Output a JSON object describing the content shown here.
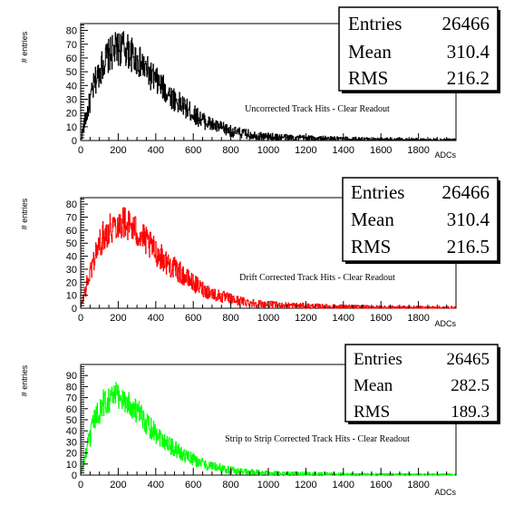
{
  "chart_data": [
    {
      "type": "histogram",
      "title": "Uncorrected Track Hits - Clear Readout",
      "xlabel": "ADCs",
      "ylabel": "# entries",
      "xlim": [
        0,
        2000
      ],
      "ylim": [
        0,
        85
      ],
      "xticks": [
        0,
        200,
        400,
        600,
        800,
        1000,
        1200,
        1400,
        1600,
        1800
      ],
      "yticks": [
        0,
        10,
        20,
        30,
        40,
        50,
        60,
        70,
        80
      ],
      "color": "#000000",
      "stats": {
        "entries_label": "Entries",
        "entries": "26466",
        "mean_label": "Mean",
        "mean": "310.4",
        "rms_label": "RMS",
        "rms": "216.2"
      },
      "bins": {
        "x": [
          25,
          75,
          125,
          175,
          225,
          275,
          325,
          375,
          425,
          475,
          525,
          575,
          625,
          675,
          725,
          775,
          825,
          875,
          925,
          975,
          1050,
          1150,
          1250,
          1350,
          1450,
          1550,
          1650,
          1750,
          1850,
          1950
        ],
        "values": [
          15,
          42,
          58,
          65,
          68,
          62,
          55,
          47,
          40,
          33,
          27,
          22,
          17,
          13,
          10,
          8,
          6,
          5,
          4,
          3,
          2.5,
          2,
          1.5,
          1.2,
          1,
          0.8,
          0.7,
          0.6,
          0.5,
          0.4
        ]
      }
    },
    {
      "type": "histogram",
      "title": "Drift Corrected Track Hits - Clear Readout",
      "xlabel": "ADCs",
      "ylabel": "# entries",
      "xlim": [
        0,
        2000
      ],
      "ylim": [
        0,
        85
      ],
      "xticks": [
        0,
        200,
        400,
        600,
        800,
        1000,
        1200,
        1400,
        1600,
        1800
      ],
      "yticks": [
        0,
        10,
        20,
        30,
        40,
        50,
        60,
        70,
        80
      ],
      "color": "#ff0000",
      "stats": {
        "entries_label": "Entries",
        "entries": "26466",
        "mean_label": "Mean",
        "mean": "310.4",
        "rms_label": "RMS",
        "rms": "216.5"
      },
      "bins": {
        "x": [
          25,
          75,
          125,
          175,
          225,
          275,
          325,
          375,
          425,
          475,
          525,
          575,
          625,
          675,
          725,
          775,
          825,
          875,
          925,
          975,
          1050,
          1150,
          1250,
          1350,
          1450,
          1550,
          1650,
          1750,
          1850,
          1950
        ],
        "values": [
          14,
          40,
          57,
          64,
          67,
          62,
          55,
          47,
          40,
          33,
          28,
          22,
          17,
          13,
          10,
          8,
          6,
          5,
          4,
          3,
          2.5,
          2,
          1.5,
          1.2,
          1,
          0.8,
          0.7,
          0.6,
          0.5,
          0.4
        ]
      }
    },
    {
      "type": "histogram",
      "title": "Strip to Strip Corrected Track Hits - Clear Readout",
      "xlabel": "ADCs",
      "ylabel": "# entries",
      "xlim": [
        0,
        2000
      ],
      "ylim": [
        0,
        100
      ],
      "xticks": [
        0,
        200,
        400,
        600,
        800,
        1000,
        1200,
        1400,
        1600,
        1800
      ],
      "yticks": [
        0,
        10,
        20,
        30,
        40,
        50,
        60,
        70,
        80,
        90
      ],
      "color": "#00ff00",
      "stats": {
        "entries_label": "Entries",
        "entries": "26465",
        "mean_label": "Mean",
        "mean": "282.5",
        "rms_label": "RMS",
        "rms": "189.3"
      },
      "bins": {
        "x": [
          25,
          75,
          125,
          175,
          225,
          275,
          325,
          375,
          425,
          475,
          525,
          575,
          625,
          675,
          725,
          775,
          825,
          875,
          925,
          975,
          1050,
          1150,
          1250,
          1350,
          1450,
          1550,
          1650,
          1750,
          1850,
          1950
        ],
        "values": [
          18,
          50,
          66,
          72,
          70,
          62,
          52,
          43,
          35,
          27,
          21,
          16,
          12,
          9,
          7,
          5,
          4,
          3,
          2.5,
          2,
          1.5,
          1.2,
          1,
          0.8,
          0.6,
          0.5,
          0.4,
          0.3,
          0.3,
          0.2
        ]
      }
    }
  ]
}
